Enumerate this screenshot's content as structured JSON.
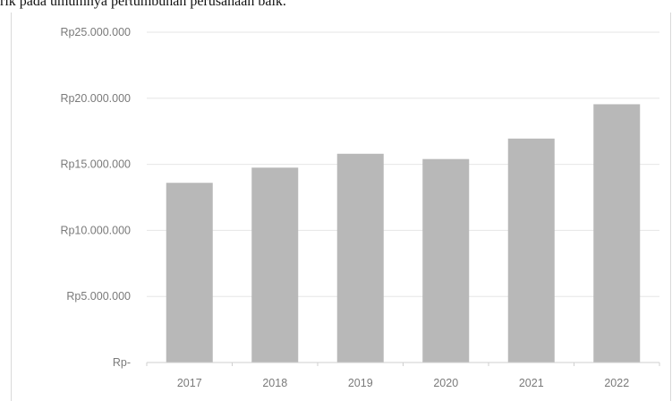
{
  "intro_text": "rik pada umumnya pertumbuhan perusahaan baik.",
  "chart_data": {
    "type": "bar",
    "categories": [
      "2017",
      "2018",
      "2019",
      "2020",
      "2021",
      "2022"
    ],
    "values": [
      13600000,
      14750000,
      15800000,
      15400000,
      16950000,
      19550000
    ],
    "ylim": [
      0,
      25000000
    ],
    "y_ticks": [
      0,
      5000000,
      10000000,
      15000000,
      20000000,
      25000000
    ],
    "y_tick_labels": [
      "Rp-",
      "Rp5.000.000",
      "Rp10.000.000",
      "Rp15.000.000",
      "Rp20.000.000",
      "Rp25.000.000"
    ],
    "grid": true,
    "legend": "none",
    "bar_color": "#b8b8b8",
    "grid_color": "#e6e6e6",
    "axis_color": "#cfcfcf"
  }
}
